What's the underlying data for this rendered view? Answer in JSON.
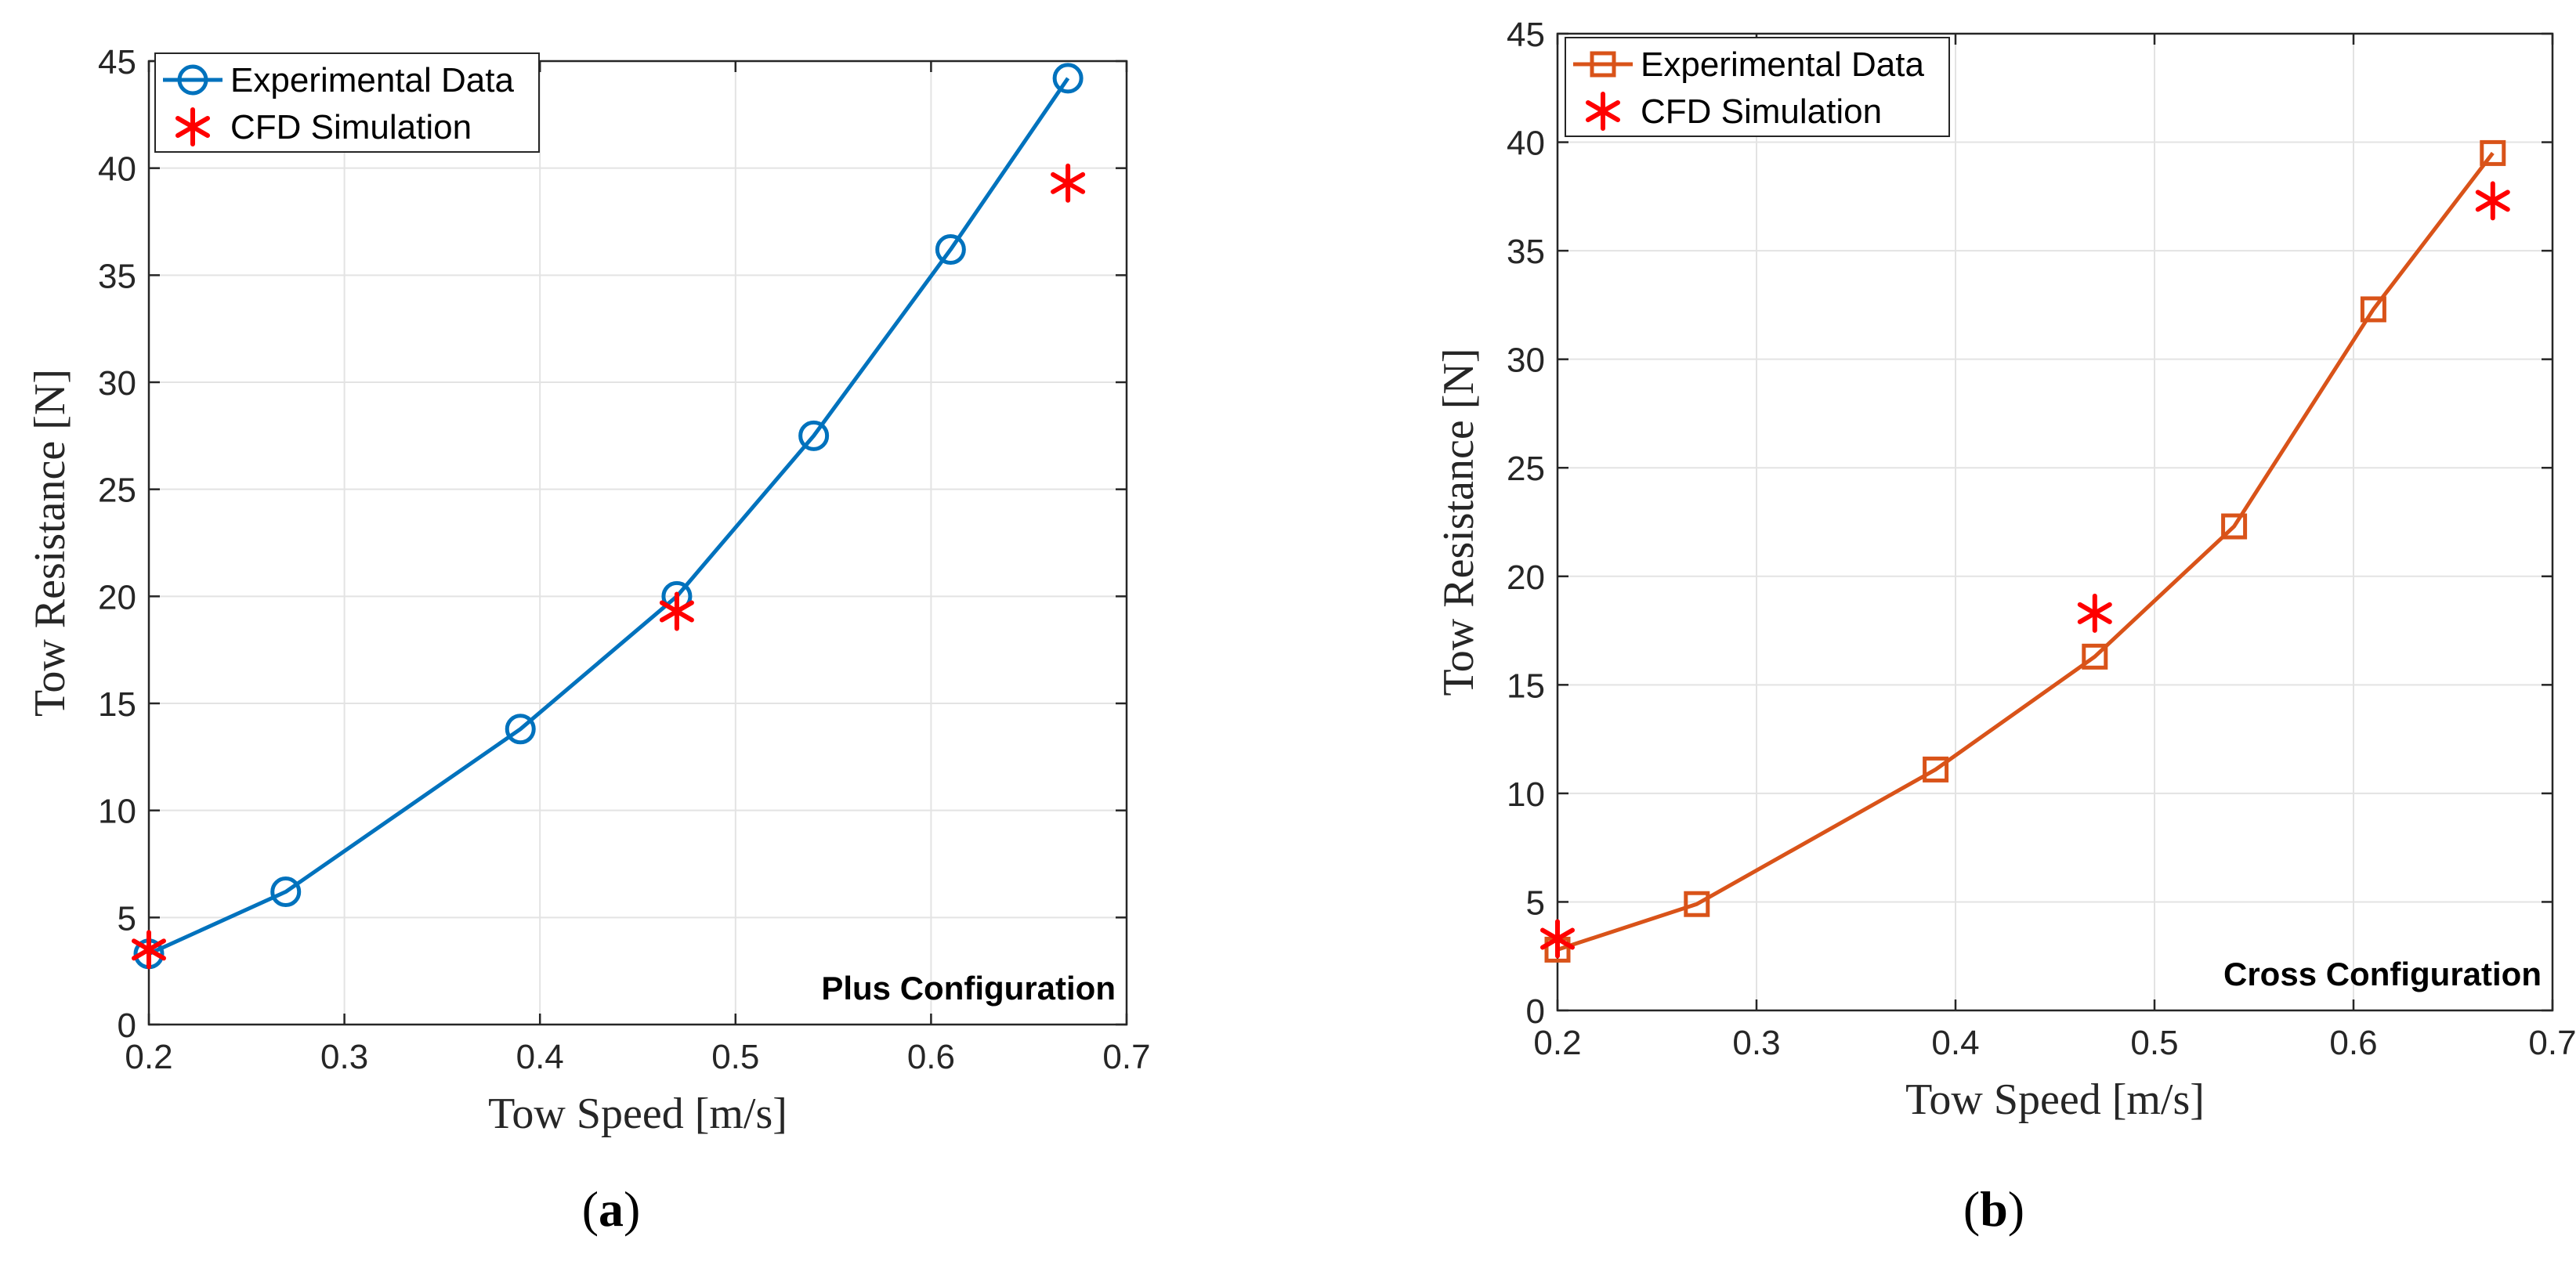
{
  "chart_data": [
    {
      "type": "line",
      "panel": "(a)",
      "caption_letter": "a",
      "annotation": "Plus Configuration",
      "xlabel": "Tow Speed [m/s]",
      "ylabel": "Tow Resistance [N]",
      "xlim": [
        0.2,
        0.7
      ],
      "ylim": [
        0,
        45
      ],
      "xticks": [
        0.2,
        0.3,
        0.4,
        0.5,
        0.6,
        0.7
      ],
      "xtick_labels": [
        "0.2",
        "0.3",
        "0.4",
        "0.5",
        "0.6",
        "0.7"
      ],
      "yticks": [
        0,
        5,
        10,
        15,
        20,
        25,
        30,
        35,
        40,
        45
      ],
      "ytick_labels": [
        "0",
        "5",
        "10",
        "15",
        "20",
        "25",
        "30",
        "35",
        "40",
        "45"
      ],
      "grid": true,
      "legend_position": "top-left",
      "series": [
        {
          "name": "Experimental Data",
          "style": "line-circle",
          "color": "#0072BD",
          "x": [
            0.2,
            0.27,
            0.39,
            0.47,
            0.54,
            0.61,
            0.67
          ],
          "y": [
            3.3,
            6.2,
            13.8,
            20.0,
            27.5,
            36.2,
            44.2
          ]
        },
        {
          "name": "CFD Simulation",
          "style": "asterisk",
          "color": "#FF0000",
          "x": [
            0.2,
            0.47,
            0.67
          ],
          "y": [
            3.5,
            19.3,
            39.3
          ]
        }
      ]
    },
    {
      "type": "line",
      "panel": "(b)",
      "caption_letter": "b",
      "annotation": "Cross Configuration",
      "xlabel": "Tow Speed [m/s]",
      "ylabel": "Tow Resistance [N]",
      "xlim": [
        0.2,
        0.7
      ],
      "ylim": [
        0,
        45
      ],
      "xticks": [
        0.2,
        0.3,
        0.4,
        0.5,
        0.6,
        0.7
      ],
      "xtick_labels": [
        "0.2",
        "0.3",
        "0.4",
        "0.5",
        "0.6",
        "0.7"
      ],
      "yticks": [
        0,
        5,
        10,
        15,
        20,
        25,
        30,
        35,
        40,
        45
      ],
      "ytick_labels": [
        "0",
        "5",
        "10",
        "15",
        "20",
        "25",
        "30",
        "35",
        "40",
        "45"
      ],
      "grid": true,
      "legend_position": "top-left",
      "series": [
        {
          "name": "Experimental Data",
          "style": "line-square",
          "color": "#D95319",
          "x": [
            0.2,
            0.27,
            0.39,
            0.47,
            0.54,
            0.61,
            0.67
          ],
          "y": [
            2.8,
            4.9,
            11.1,
            16.3,
            22.3,
            32.3,
            39.5
          ]
        },
        {
          "name": "CFD Simulation",
          "style": "asterisk",
          "color": "#FF0000",
          "x": [
            0.2,
            0.47,
            0.67
          ],
          "y": [
            3.3,
            18.3,
            37.3
          ]
        }
      ]
    }
  ]
}
